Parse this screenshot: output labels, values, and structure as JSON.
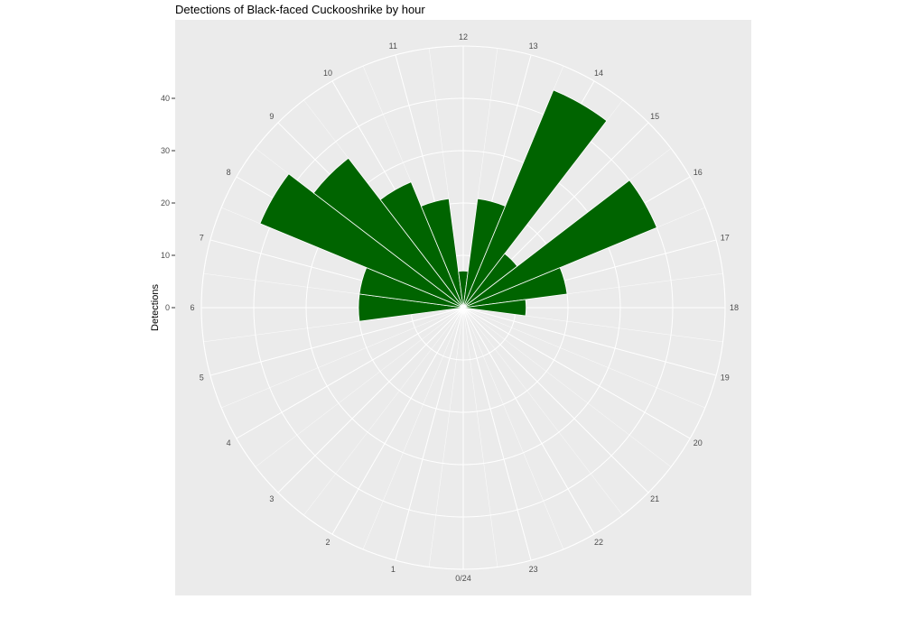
{
  "chart_data": {
    "type": "bar",
    "coord": "polar",
    "title": "Detections of Black-faced Cuckooshrike by hour",
    "xlabel": "",
    "ylabel": "Detections",
    "ylim": [
      0,
      50
    ],
    "yticks": [
      "0",
      "10",
      "20",
      "30",
      "40"
    ],
    "ytick_values": [
      0,
      10,
      20,
      30,
      40
    ],
    "categories": [
      "0/24",
      "1",
      "2",
      "3",
      "4",
      "5",
      "6",
      "7",
      "8",
      "9",
      "10",
      "11",
      "12",
      "13",
      "14",
      "15",
      "16",
      "17",
      "18",
      "19",
      "20",
      "21",
      "22",
      "23"
    ],
    "values": [
      0,
      0,
      0,
      0,
      0,
      0,
      20,
      20,
      42,
      36,
      26,
      21,
      7,
      21,
      45,
      13,
      40,
      20,
      12,
      0,
      0,
      0,
      0,
      0
    ],
    "bar_color": "#006400",
    "panel_color": "#ebebeb",
    "grid": true,
    "legend": "none"
  }
}
